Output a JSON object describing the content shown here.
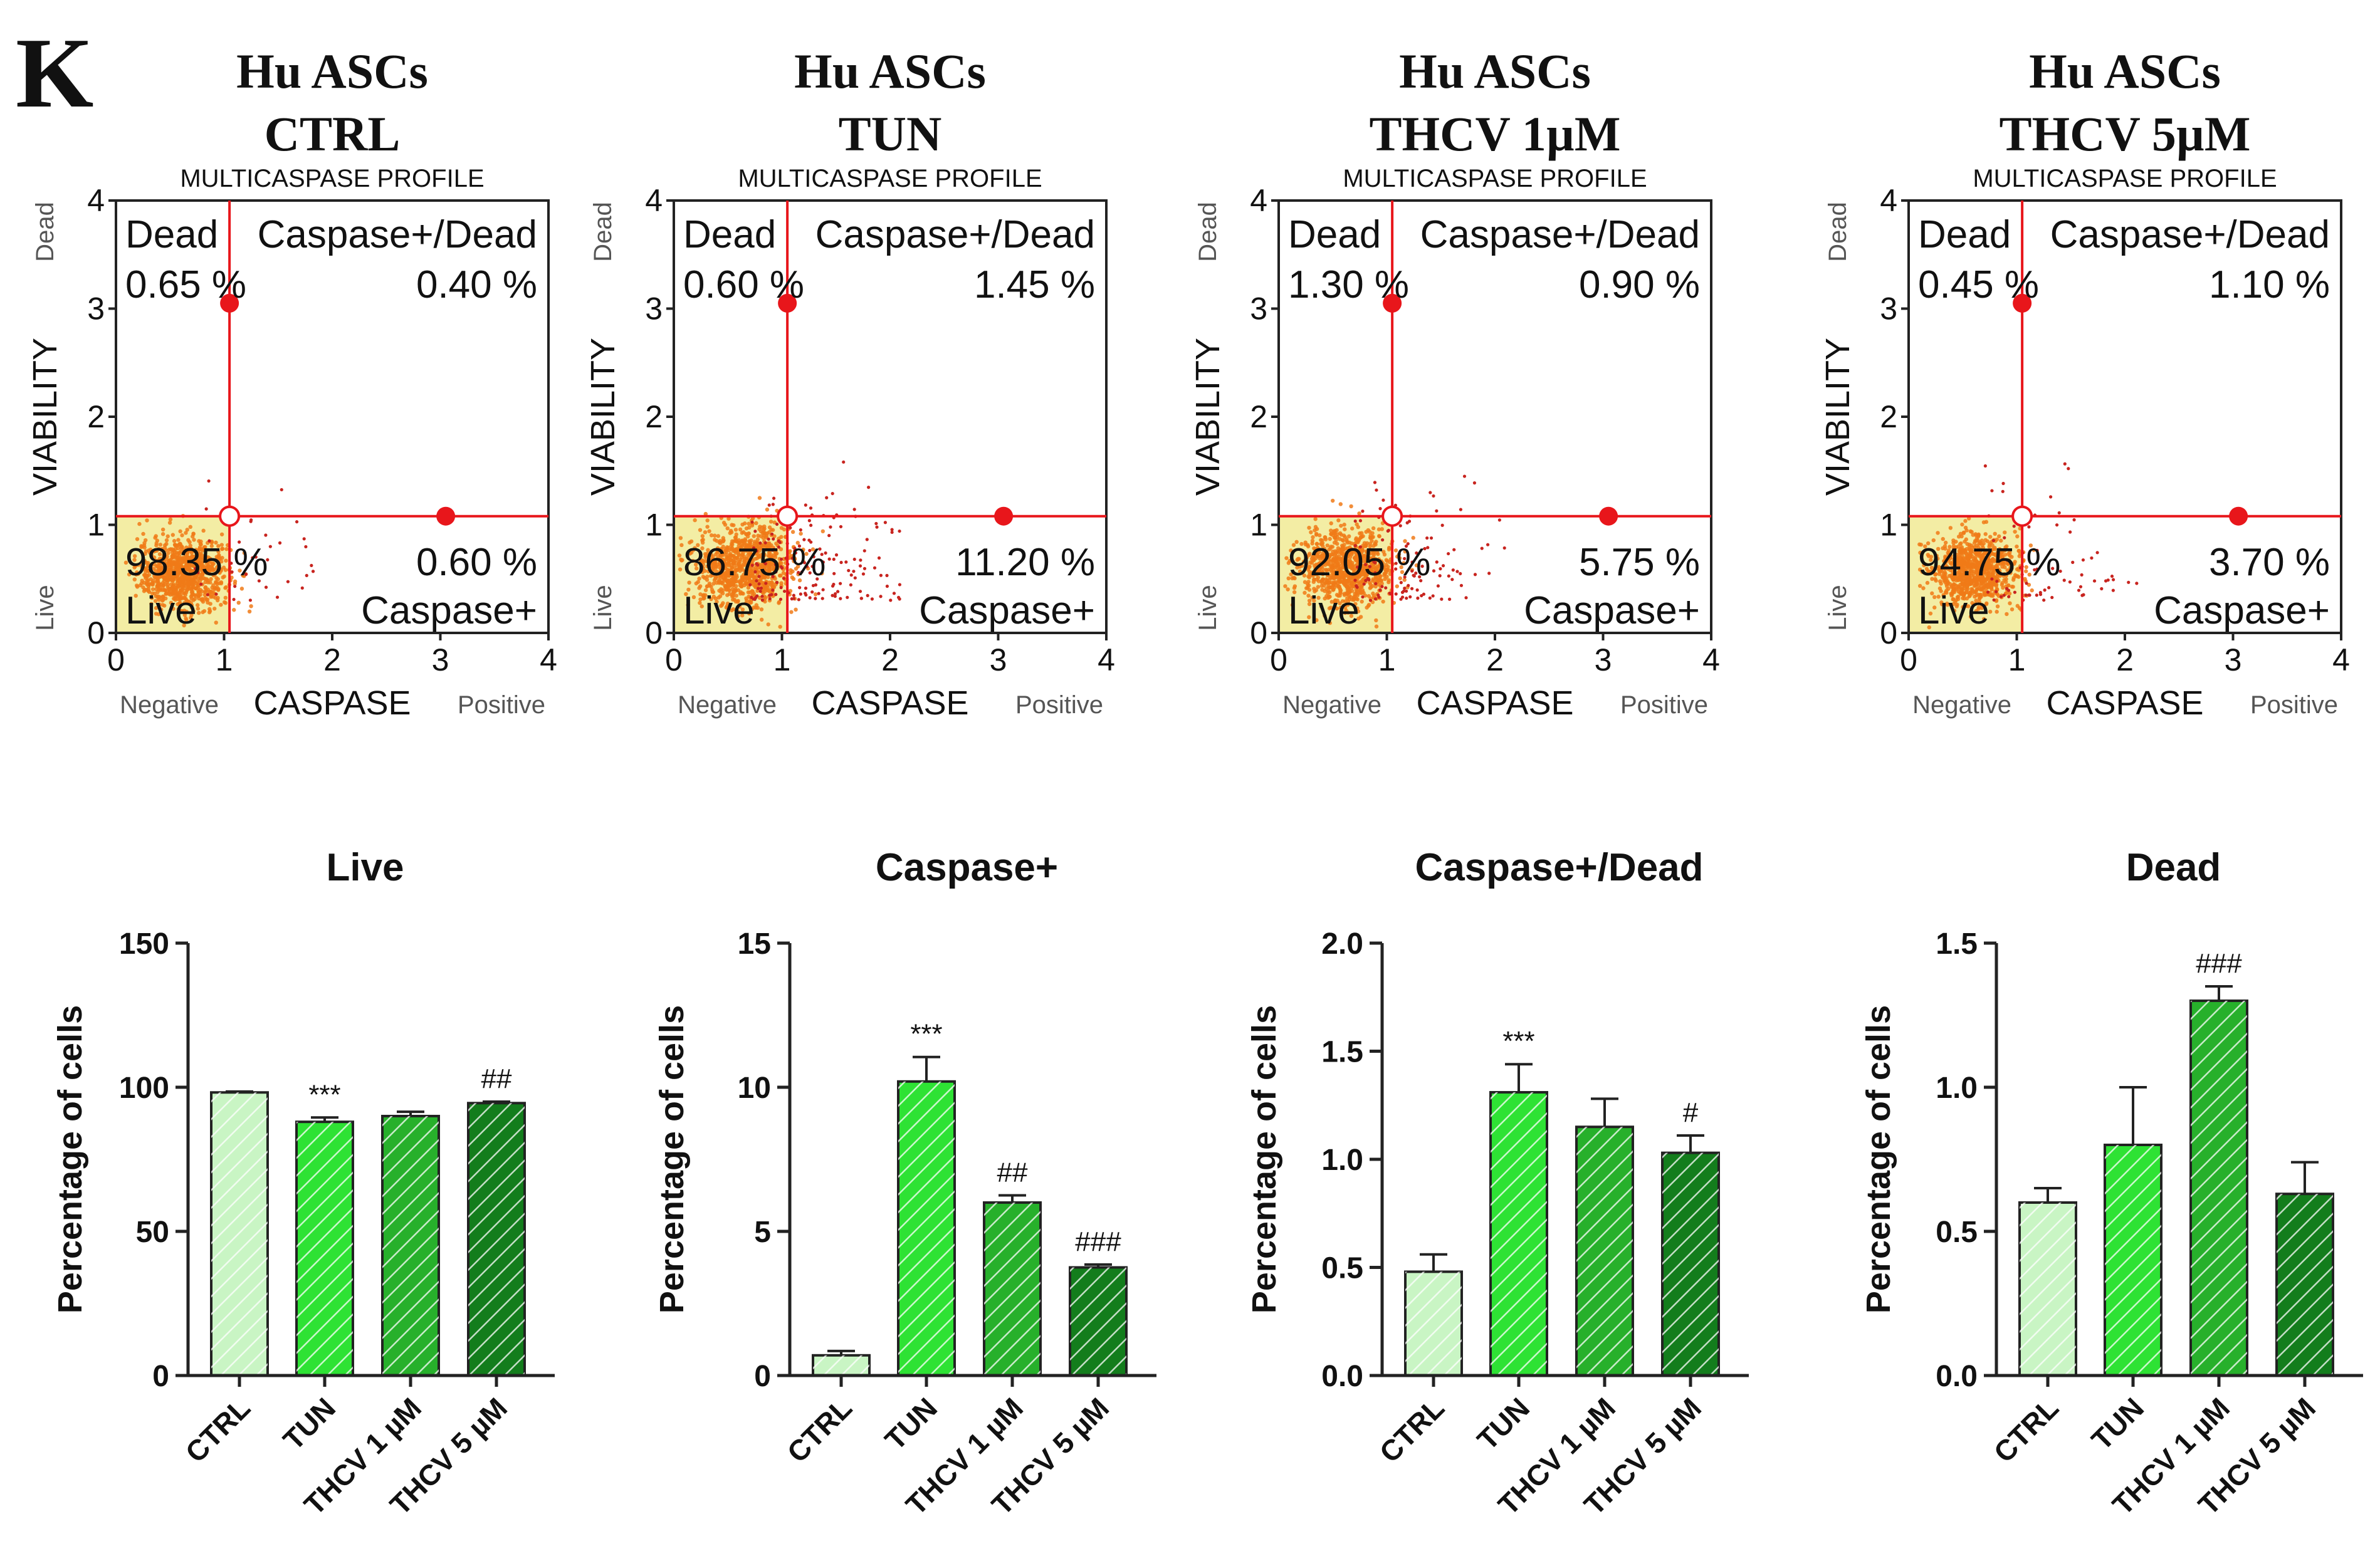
{
  "panel_letter": "K",
  "flow_plots": [
    {
      "title_line1": "Hu ASCs",
      "title_line2": "CTRL",
      "subtitle": "MULTICASPASE PROFILE",
      "q_dead_label": "Dead",
      "q_cd_label": "Caspase+/Dead",
      "q_dead_value": "0.65 %",
      "q_cd_value": "0.40 %",
      "q_live_value": "98.35 %",
      "q_casp_value": "0.60 %",
      "q_live_label": "Live",
      "q_casp_label": "Caspase+",
      "ylabel": "VIABILITY",
      "ylabel_top": "Dead",
      "ylabel_bottom": "Live",
      "xlabel": "CASPASE",
      "xlabel_left": "Negative",
      "xlabel_right": "Positive",
      "ticks": [
        "0",
        "1",
        "2",
        "3",
        "4"
      ]
    },
    {
      "title_line1": "Hu ASCs",
      "title_line2": "TUN",
      "subtitle": "MULTICASPASE PROFILE",
      "q_dead_label": "Dead",
      "q_cd_label": "Caspase+/Dead",
      "q_dead_value": "0.60 %",
      "q_cd_value": "1.45 %",
      "q_live_value": "86.75 %",
      "q_casp_value": "11.20 %",
      "q_live_label": "Live",
      "q_casp_label": "Caspase+",
      "ylabel": "VIABILITY",
      "ylabel_top": "Dead",
      "ylabel_bottom": "Live",
      "xlabel": "CASPASE",
      "xlabel_left": "Negative",
      "xlabel_right": "Positive",
      "ticks": [
        "0",
        "1",
        "2",
        "3",
        "4"
      ]
    },
    {
      "title_line1": "Hu ASCs",
      "title_line2": "THCV 1µM",
      "subtitle": "MULTICASPASE PROFILE",
      "q_dead_label": "Dead",
      "q_cd_label": "Caspase+/Dead",
      "q_dead_value": "1.30 %",
      "q_cd_value": "0.90 %",
      "q_live_value": "92.05 %",
      "q_casp_value": "5.75 %",
      "q_live_label": "Live",
      "q_casp_label": "Caspase+",
      "ylabel": "VIABILITY",
      "ylabel_top": "Dead",
      "ylabel_bottom": "Live",
      "xlabel": "CASPASE",
      "xlabel_left": "Negative",
      "xlabel_right": "Positive",
      "ticks": [
        "0",
        "1",
        "2",
        "3",
        "4"
      ]
    },
    {
      "title_line1": "Hu ASCs",
      "title_line2": "THCV 5µM",
      "subtitle": "MULTICASPASE PROFILE",
      "q_dead_label": "Dead",
      "q_cd_label": "Caspase+/Dead",
      "q_dead_value": "0.45 %",
      "q_cd_value": "1.10 %",
      "q_live_value": "94.75 %",
      "q_casp_value": "3.70 %",
      "q_live_label": "Live",
      "q_casp_label": "Caspase+",
      "ylabel": "VIABILITY",
      "ylabel_top": "Dead",
      "ylabel_bottom": "Live",
      "xlabel": "CASPASE",
      "xlabel_left": "Negative",
      "xlabel_right": "Positive",
      "ticks": [
        "0",
        "1",
        "2",
        "3",
        "4"
      ]
    }
  ],
  "chart_data": [
    {
      "type": "scatter",
      "title": "Hu ASCs CTRL — MULTICASPASE PROFILE",
      "xlabel": "CASPASE",
      "ylabel": "VIABILITY",
      "xlim": [
        0,
        4
      ],
      "ylim": [
        0,
        4
      ],
      "gate": {
        "x": 1.05,
        "y": 1.08
      },
      "cluster": {
        "cx": 0.62,
        "cy": 0.55,
        "spread": 0.28
      },
      "scatter_cells": 35,
      "quadrants": {
        "Live": 98.35,
        "Caspase+": 0.6,
        "Caspase+/Dead": 0.4,
        "Dead": 0.65
      }
    },
    {
      "type": "scatter",
      "title": "Hu ASCs TUN — MULTICASPASE PROFILE",
      "xlabel": "CASPASE",
      "ylabel": "VIABILITY",
      "xlim": [
        0,
        4
      ],
      "ylim": [
        0,
        4
      ],
      "gate": {
        "x": 1.05,
        "y": 1.08
      },
      "cluster": {
        "cx": 0.65,
        "cy": 0.62,
        "spread": 0.32
      },
      "scatter_cells": 170,
      "quadrants": {
        "Live": 86.75,
        "Caspase+": 11.2,
        "Caspase+/Dead": 1.45,
        "Dead": 0.6
      }
    },
    {
      "type": "scatter",
      "title": "Hu ASCs THCV 1µM — MULTICASPASE PROFILE",
      "xlabel": "CASPASE",
      "ylabel": "VIABILITY",
      "xlim": [
        0,
        4
      ],
      "ylim": [
        0,
        4
      ],
      "gate": {
        "x": 1.05,
        "y": 1.08
      },
      "cluster": {
        "cx": 0.62,
        "cy": 0.6,
        "spread": 0.3
      },
      "scatter_cells": 110,
      "quadrants": {
        "Live": 92.05,
        "Caspase+": 5.75,
        "Caspase+/Dead": 0.9,
        "Dead": 1.3
      }
    },
    {
      "type": "scatter",
      "title": "Hu ASCs THCV 5µM — MULTICASPASE PROFILE",
      "xlabel": "CASPASE",
      "ylabel": "VIABILITY",
      "xlim": [
        0,
        4
      ],
      "ylim": [
        0,
        4
      ],
      "gate": {
        "x": 1.05,
        "y": 1.08
      },
      "cluster": {
        "cx": 0.6,
        "cy": 0.58,
        "spread": 0.28
      },
      "scatter_cells": 70,
      "quadrants": {
        "Live": 94.75,
        "Caspase+": 3.7,
        "Caspase+/Dead": 1.1,
        "Dead": 0.45
      }
    },
    {
      "type": "bar",
      "title": "Live",
      "ylabel": "Percentage of cells",
      "xlabel": "",
      "categories": [
        "CTRL",
        "TUN",
        "THCV 1 µM",
        "THCV 5 µM"
      ],
      "values": [
        98.2,
        88,
        90,
        94.5
      ],
      "errors": [
        0.3,
        1.5,
        1.5,
        0.5
      ],
      "annotations": [
        "",
        "***",
        "",
        "##"
      ],
      "ylim": [
        0,
        150
      ],
      "yticks": [
        "0",
        "50",
        "100",
        "150"
      ]
    },
    {
      "type": "bar",
      "title": "Caspase+",
      "ylabel": "Percentage of cells",
      "xlabel": "",
      "categories": [
        "CTRL",
        "TUN",
        "THCV 1 µM",
        "THCV 5 µM"
      ],
      "values": [
        0.7,
        10.2,
        6,
        3.75
      ],
      "errors": [
        0.15,
        0.85,
        0.25,
        0.1
      ],
      "annotations": [
        "",
        "***",
        "##",
        "###"
      ],
      "ylim": [
        0,
        15
      ],
      "yticks": [
        "0",
        "5",
        "10",
        "15"
      ]
    },
    {
      "type": "bar",
      "title": "Caspase+/Dead",
      "ylabel": "Percentage of cells",
      "xlabel": "",
      "categories": [
        "CTRL",
        "TUN",
        "THCV 1 µM",
        "THCV 5 µM"
      ],
      "values": [
        0.48,
        1.31,
        1.15,
        1.03
      ],
      "errors": [
        0.08,
        0.13,
        0.13,
        0.08
      ],
      "annotations": [
        "",
        "***",
        "",
        "#"
      ],
      "ylim": [
        0,
        2
      ],
      "yticks": [
        "0.0",
        "0.5",
        "1.0",
        "1.5",
        "2.0"
      ]
    },
    {
      "type": "bar",
      "title": "Dead",
      "ylabel": "Percentage of cells",
      "xlabel": "",
      "categories": [
        "CTRL",
        "TUN",
        "THCV 1 µM",
        "THCV 5 µM"
      ],
      "values": [
        0.6,
        0.8,
        1.3,
        0.63
      ],
      "errors": [
        0.05,
        0.2,
        0.05,
        0.11
      ],
      "annotations": [
        "",
        "",
        "###",
        ""
      ],
      "ylim": [
        0,
        1.5
      ],
      "yticks": [
        "0.0",
        "0.5",
        "1.0",
        "1.5"
      ]
    }
  ],
  "colors": {
    "axis": "#222222",
    "gate": "#e8161b",
    "live_fill": "#f3eda4",
    "cell_core": "#f07a17",
    "cell_scatter": "#c8241f",
    "bar_fills": [
      "#c9f5c4",
      "#2ee234",
      "#27b02b",
      "#137d1c"
    ],
    "hatch": "#ffffff"
  }
}
